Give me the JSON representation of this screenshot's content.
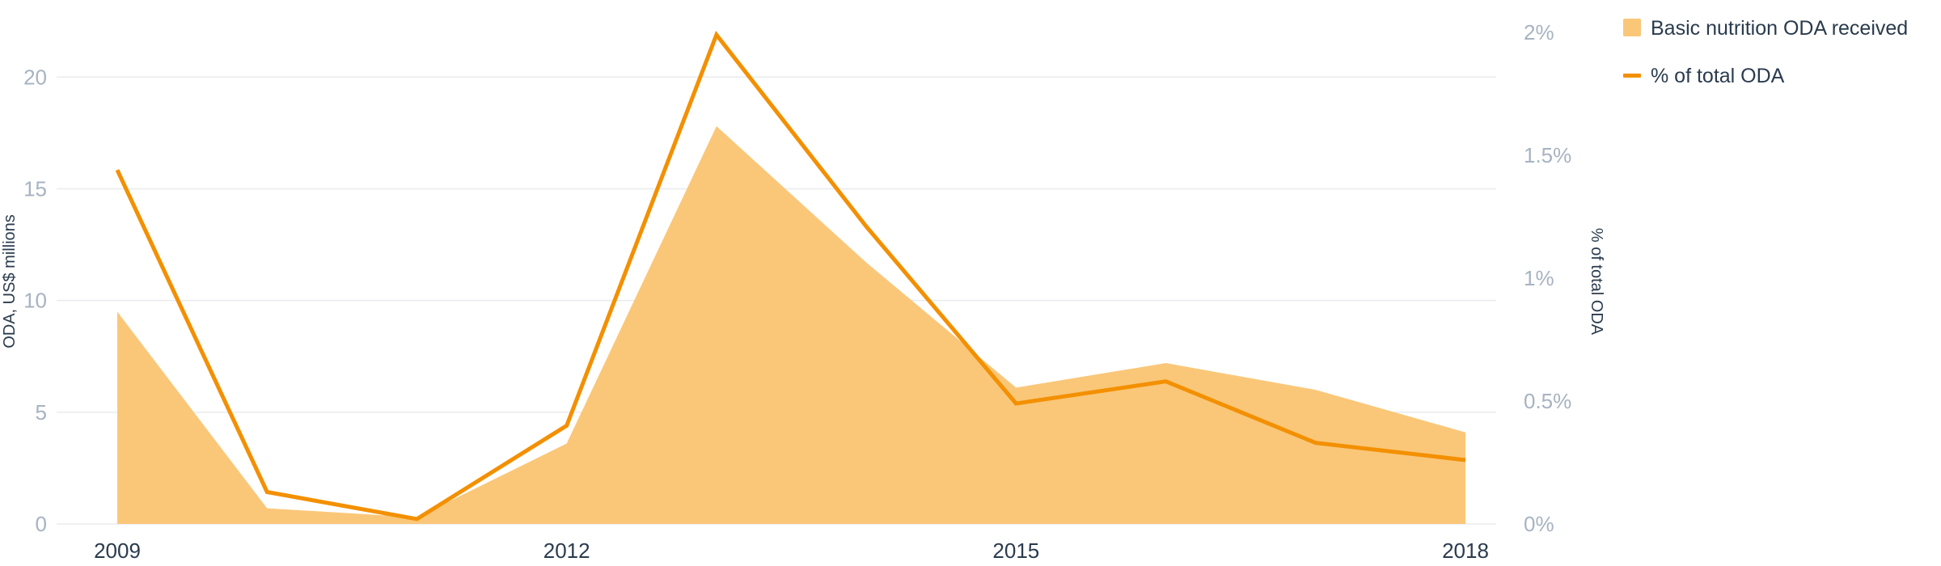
{
  "chart_data": {
    "type": "area",
    "x": [
      2009,
      2010,
      2011,
      2012,
      2013,
      2014,
      2015,
      2016,
      2017,
      2018
    ],
    "x_tick_labels": [
      "2009",
      "2012",
      "2015",
      "2018"
    ],
    "series": [
      {
        "name": "Basic nutrition ODA received",
        "type": "area",
        "axis": "left",
        "color": "#fac779",
        "values": [
          9.5,
          0.7,
          0.3,
          3.6,
          17.8,
          11.7,
          6.1,
          7.2,
          6.0,
          4.1
        ]
      },
      {
        "name": "% of total ODA",
        "type": "line",
        "axis": "right",
        "color": "#f39000",
        "values": [
          1.44,
          0.13,
          0.02,
          0.4,
          1.99,
          1.21,
          0.49,
          0.58,
          0.33,
          0.26
        ]
      }
    ],
    "y_left": {
      "label": "ODA, US$ millions",
      "ylim": [
        0,
        22
      ],
      "ticks": [
        0,
        5,
        10,
        15,
        20
      ],
      "tick_labels": [
        "0",
        "5",
        "10",
        "15",
        "20"
      ]
    },
    "y_right": {
      "label": "% of total ODA",
      "ylim": [
        0,
        2.0
      ],
      "ticks": [
        0,
        0.5,
        1,
        1.5,
        2
      ],
      "tick_labels": [
        "0%",
        "0.5%",
        "1%",
        "1.5%",
        "2%"
      ]
    },
    "grid": true,
    "legend_position": "top-right"
  }
}
